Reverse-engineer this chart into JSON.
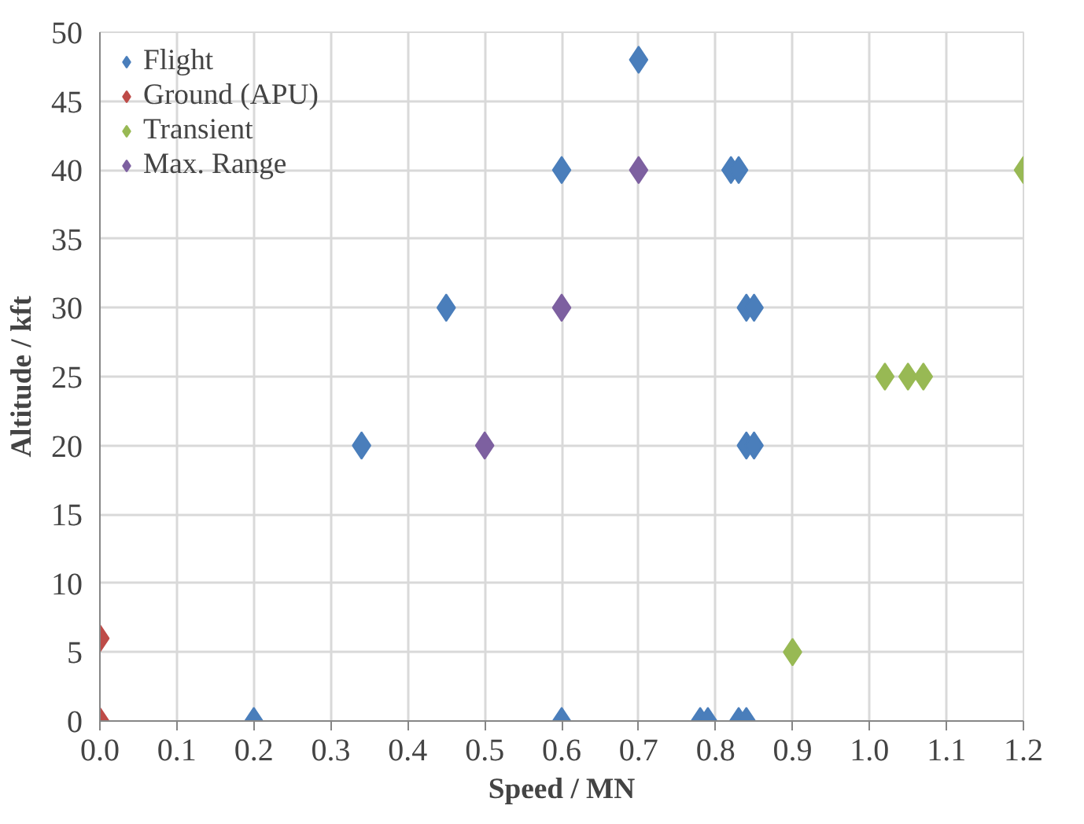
{
  "chart_data": {
    "type": "scatter",
    "xlabel": "Speed / MN",
    "ylabel": "Altitude / kft",
    "xlim": [
      0,
      1.2
    ],
    "xticks": [
      {
        "value": 0,
        "label": "0.0"
      },
      {
        "value": 0.1,
        "label": "0.1"
      },
      {
        "value": 0.2,
        "label": "0.2"
      },
      {
        "value": 0.3,
        "label": "0.3"
      },
      {
        "value": 0.4,
        "label": "0.4"
      },
      {
        "value": 0.5,
        "label": "0.5"
      },
      {
        "value": 0.6,
        "label": "0.6"
      },
      {
        "value": 0.7,
        "label": "0.7"
      },
      {
        "value": 0.8,
        "label": "0.8"
      },
      {
        "value": 0.9,
        "label": "0.9"
      },
      {
        "value": 1.0,
        "label": "1.0"
      },
      {
        "value": 1.1,
        "label": "1.1"
      },
      {
        "value": 1.2,
        "label": "1.2"
      }
    ],
    "ylim": [
      0,
      50
    ],
    "yticks": [
      0,
      5,
      10,
      15,
      20,
      25,
      30,
      35,
      40,
      45,
      50
    ],
    "grid": true,
    "legend": "top left",
    "marker": "diamond",
    "series": [
      {
        "name": "Flight",
        "color": "#4a7ebb",
        "x": [
          0.7,
          0.6,
          0.82,
          0.83,
          0.45,
          0.84,
          0.85,
          0.34,
          0.84,
          0.85,
          0.2,
          0.6,
          0.78,
          0.79,
          0.83,
          0.84
        ],
        "values": [
          48,
          40,
          40,
          40,
          30,
          30,
          30,
          20,
          20,
          20,
          0,
          0,
          0,
          0,
          0,
          0
        ]
      },
      {
        "name": "Ground (APU)",
        "color": "#be4b48",
        "x": [
          0,
          0
        ],
        "values": [
          0,
          6
        ]
      },
      {
        "name": "Transient",
        "color": "#98b954",
        "x": [
          1.2,
          1.02,
          1.05,
          1.07,
          0.9
        ],
        "values": [
          40,
          25,
          25,
          25,
          5
        ]
      },
      {
        "name": "Max. Range",
        "color": "#7d60a0",
        "x": [
          0.7,
          0.6,
          0.5
        ],
        "values": [
          40,
          30,
          20
        ]
      }
    ]
  }
}
